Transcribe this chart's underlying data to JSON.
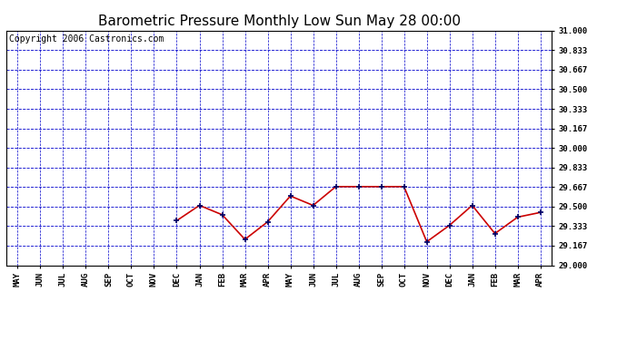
{
  "title": "Barometric Pressure Monthly Low Sun May 28 00:00",
  "copyright": "Copyright 2006 Castronics.com",
  "x_labels": [
    "MAY",
    "JUN",
    "JUL",
    "AUG",
    "SEP",
    "OCT",
    "NOV",
    "DEC",
    "JAN",
    "FEB",
    "MAR",
    "APR",
    "MAY",
    "JUN",
    "JUL",
    "AUG",
    "SEP",
    "OCT",
    "NOV",
    "DEC",
    "JAN",
    "FEB",
    "MAR",
    "APR"
  ],
  "y_values": [
    null,
    null,
    null,
    null,
    null,
    null,
    null,
    29.38,
    29.51,
    29.43,
    29.22,
    29.37,
    29.59,
    29.51,
    29.67,
    29.67,
    29.67,
    29.67,
    29.2,
    29.34,
    29.51,
    29.27,
    29.41,
    29.45
  ],
  "ylim": [
    29.0,
    31.0
  ],
  "ytick_values": [
    29.0,
    29.167,
    29.333,
    29.5,
    29.667,
    29.833,
    30.0,
    30.167,
    30.333,
    30.5,
    30.667,
    30.833,
    31.0
  ],
  "ytick_labels": [
    "29.000",
    "29.167",
    "29.333",
    "29.500",
    "29.667",
    "29.833",
    "30.000",
    "30.167",
    "30.333",
    "30.500",
    "30.667",
    "30.833",
    "31.000"
  ],
  "line_color": "#cc0000",
  "marker_color": "#000066",
  "bg_color": "#ffffff",
  "grid_color": "#0000cc",
  "title_fontsize": 11,
  "copyright_fontsize": 7
}
